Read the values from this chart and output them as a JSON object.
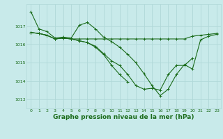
{
  "background_color": "#c8eaea",
  "grid_color": "#b0d8d8",
  "line_color": "#1a6b1a",
  "xlabel": "Graphe pression niveau de la mer (hPa)",
  "xlabel_fontsize": 6.5,
  "figsize": [
    3.2,
    2.0
  ],
  "dpi": 100,
  "xlim": [
    -0.5,
    23.5
  ],
  "ylim": [
    1012.5,
    1018.2
  ],
  "yticks": [
    1013,
    1014,
    1015,
    1016,
    1017
  ],
  "xticks": [
    0,
    1,
    2,
    3,
    4,
    5,
    6,
    7,
    8,
    9,
    10,
    11,
    12,
    13,
    14,
    15,
    16,
    17,
    18,
    19,
    20,
    21,
    22,
    23
  ],
  "series": [
    [
      1017.8,
      1016.85,
      1016.7,
      1016.35,
      1016.4,
      1016.35,
      1017.05,
      1017.2,
      1016.85,
      1016.4,
      1016.15,
      1015.85,
      1015.45,
      1015.0,
      1014.4,
      1013.75,
      1013.2,
      1013.55,
      1014.35,
      1014.9,
      1014.65,
      1016.25,
      1016.45,
      1016.55
    ],
    [
      1016.65,
      1016.6,
      1016.5,
      1016.3,
      1016.35,
      1016.3,
      1016.3,
      1016.3,
      1016.3,
      1016.3,
      1016.3,
      1016.3,
      1016.3,
      1016.3,
      1016.3,
      1016.3,
      1016.3,
      1016.3,
      1016.3,
      1016.3,
      1016.45,
      1016.5,
      1016.55,
      1016.6
    ],
    [
      1016.65,
      1016.6,
      1016.5,
      1016.3,
      1016.35,
      1016.3,
      1016.2,
      1016.1,
      1015.9,
      1015.5,
      1015.1,
      1014.85,
      1014.35,
      1013.75,
      1013.55,
      1013.6,
      1013.5,
      1014.35,
      1014.85,
      1014.85,
      1015.25,
      null,
      null,
      null
    ],
    [
      1016.65,
      1016.6,
      1016.5,
      1016.3,
      1016.35,
      1016.3,
      1016.2,
      1016.1,
      1015.85,
      1015.45,
      1014.85,
      1014.35,
      1013.95,
      null,
      null,
      null,
      null,
      null,
      null,
      null,
      null,
      null,
      null,
      null
    ]
  ]
}
